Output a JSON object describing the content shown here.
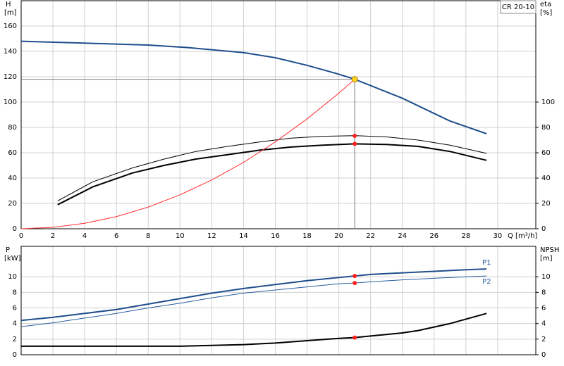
{
  "chart_data": [
    {
      "type": "line",
      "xlim": [
        0,
        32.4
      ],
      "xticks": [
        0,
        2,
        4,
        6,
        8,
        10,
        12,
        14,
        16,
        18,
        20,
        22,
        24,
        26,
        28,
        30
      ],
      "x_label": "Q [m³/h]",
      "ylim": [
        0,
        180
      ],
      "yticks": [
        0,
        20,
        40,
        60,
        80,
        100,
        120,
        140,
        160
      ],
      "y_label": "H",
      "y_unit": "[m]",
      "y2lim": [
        0,
        180
      ],
      "y2ticks": [
        0,
        20,
        40,
        60,
        80,
        100
      ],
      "y2_label": "eta",
      "y2_unit": "[%]",
      "box_label": "CR 20-10",
      "grid": true,
      "series": [
        {
          "color": "#1f4e8c",
          "width": 2,
          "x": [
            0,
            4,
            8,
            10.5,
            14,
            16,
            18,
            20,
            21,
            22,
            24,
            26,
            27,
            29.3
          ],
          "values": [
            148,
            146.5,
            145,
            143,
            139,
            135,
            129,
            122,
            118,
            113,
            103,
            91,
            85,
            75
          ]
        },
        {
          "color": "#000000",
          "width": 1,
          "axis": "y2",
          "x": [
            2.3,
            4.5,
            7,
            9,
            11,
            13,
            15,
            17,
            19,
            21,
            23,
            25,
            27,
            29.3
          ],
          "values": [
            22,
            37,
            48,
            55,
            61,
            65,
            68.5,
            71.5,
            73,
            73.5,
            72.5,
            70,
            66,
            59.5
          ]
        },
        {
          "color": "#000000",
          "width": 2,
          "axis": "y2",
          "x": [
            2.3,
            4.5,
            7,
            9,
            11,
            13,
            15,
            17,
            19,
            21,
            23,
            25,
            27,
            29.3
          ],
          "values": [
            19,
            33,
            44,
            50,
            55,
            58.5,
            62,
            64.5,
            66,
            67,
            66.5,
            65,
            61,
            54
          ]
        },
        {
          "color": "#ff3030",
          "width": 1,
          "x": [
            0,
            2,
            4,
            6,
            8,
            10,
            12,
            14,
            16,
            18,
            20,
            21
          ],
          "values": [
            0,
            1.1,
            4.3,
            9.6,
            17.1,
            26.8,
            38.5,
            52.4,
            68.5,
            86.7,
            107,
            118
          ]
        }
      ],
      "points": [
        {
          "x": 21,
          "y": 118,
          "color": "#ffd21f",
          "guides": true
        },
        {
          "x": 21,
          "y": 73.3,
          "color": "#ff2020",
          "axis": "y2"
        },
        {
          "x": 21,
          "y": 67,
          "color": "#ff2020",
          "axis": "y2"
        }
      ]
    },
    {
      "type": "line",
      "xlim": [
        0,
        32.4
      ],
      "xticks": [
        0,
        2,
        4,
        6,
        8,
        10,
        12,
        14,
        16,
        18,
        20,
        22,
        24,
        26,
        28,
        30
      ],
      "ylim": [
        0,
        13.9
      ],
      "yticks": [
        0,
        2,
        4,
        6,
        8,
        10
      ],
      "y_label": "P",
      "y_unit": "[kW]",
      "y2lim": [
        0,
        13.9
      ],
      "y2ticks": [
        0,
        2,
        4,
        6,
        8,
        10
      ],
      "y2_label": "NPSH",
      "y2_unit": "[m]",
      "grid": true,
      "series": [
        {
          "name": "P1",
          "color": "#1f4e8c",
          "width": 2,
          "x": [
            0,
            2,
            4,
            6,
            8,
            10,
            12,
            14,
            16,
            18,
            20,
            21,
            22,
            24,
            26,
            28,
            29.3
          ],
          "values": [
            4.4,
            4.8,
            5.3,
            5.8,
            6.5,
            7.2,
            7.9,
            8.5,
            9.0,
            9.5,
            9.9,
            10.1,
            10.3,
            10.5,
            10.7,
            10.9,
            11.0
          ]
        },
        {
          "name": "P2",
          "color": "#2a5d9f",
          "width": 1,
          "x": [
            0,
            2,
            4,
            6,
            8,
            10,
            12,
            14,
            16,
            18,
            20,
            21,
            22,
            24,
            26,
            28,
            29.3
          ],
          "values": [
            3.6,
            4.1,
            4.7,
            5.3,
            6.0,
            6.6,
            7.3,
            7.9,
            8.3,
            8.7,
            9.1,
            9.2,
            9.35,
            9.6,
            9.8,
            10.0,
            10.1
          ]
        },
        {
          "color": "#000000",
          "width": 2,
          "axis": "y2",
          "x": [
            0,
            10,
            12,
            14,
            16,
            18,
            20,
            21,
            22,
            24,
            25,
            27,
            29.3
          ],
          "values": [
            1.1,
            1.1,
            1.2,
            1.3,
            1.5,
            1.8,
            2.1,
            2.2,
            2.4,
            2.8,
            3.1,
            4.0,
            5.3
          ]
        }
      ],
      "points": [
        {
          "x": 21,
          "y": 10.1,
          "color": "#ff2020"
        },
        {
          "x": 21,
          "y": 9.2,
          "color": "#ff2020"
        },
        {
          "x": 21,
          "y": 2.2,
          "color": "#ff2020",
          "axis": "y2"
        }
      ]
    }
  ]
}
